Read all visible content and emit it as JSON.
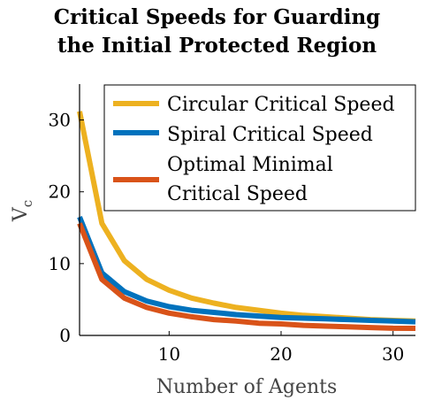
{
  "chart_data": {
    "type": "line",
    "title_lines": [
      "Critical Speeds for Guarding",
      "the Initial Protected Region"
    ],
    "xlabel": "Number of Agents",
    "ylabel": "V",
    "ylabel_subscript": "c",
    "xlim": [
      2,
      32
    ],
    "ylim": [
      0,
      35
    ],
    "xticks": [
      10,
      20,
      30
    ],
    "yticks": [
      0,
      10,
      20,
      30
    ],
    "grid": false,
    "legend_position": "top-right",
    "x": [
      2,
      4,
      6,
      8,
      10,
      12,
      14,
      16,
      18,
      20,
      22,
      24,
      26,
      28,
      30,
      32
    ],
    "series": [
      {
        "name": "Circular Critical Speed",
        "color": "#EDB120",
        "values": [
          31.2,
          15.6,
          10.4,
          7.8,
          6.3,
          5.2,
          4.5,
          3.9,
          3.5,
          3.1,
          2.8,
          2.6,
          2.4,
          2.2,
          2.1,
          2.0
        ]
      },
      {
        "name": "Spiral Critical Speed",
        "color": "#0072BD",
        "values": [
          16.5,
          8.7,
          6.1,
          4.8,
          4.0,
          3.5,
          3.2,
          2.9,
          2.7,
          2.5,
          2.4,
          2.3,
          2.2,
          2.1,
          2.0,
          1.9
        ]
      },
      {
        "name": "Optimal Minimal Critical Speed",
        "legend_lines": [
          "Optimal Minimal",
          "Critical Speed"
        ],
        "color": "#D95319",
        "values": [
          15.6,
          7.8,
          5.2,
          3.9,
          3.1,
          2.6,
          2.2,
          2.0,
          1.7,
          1.6,
          1.4,
          1.3,
          1.2,
          1.1,
          1.0,
          0.98
        ]
      }
    ]
  }
}
